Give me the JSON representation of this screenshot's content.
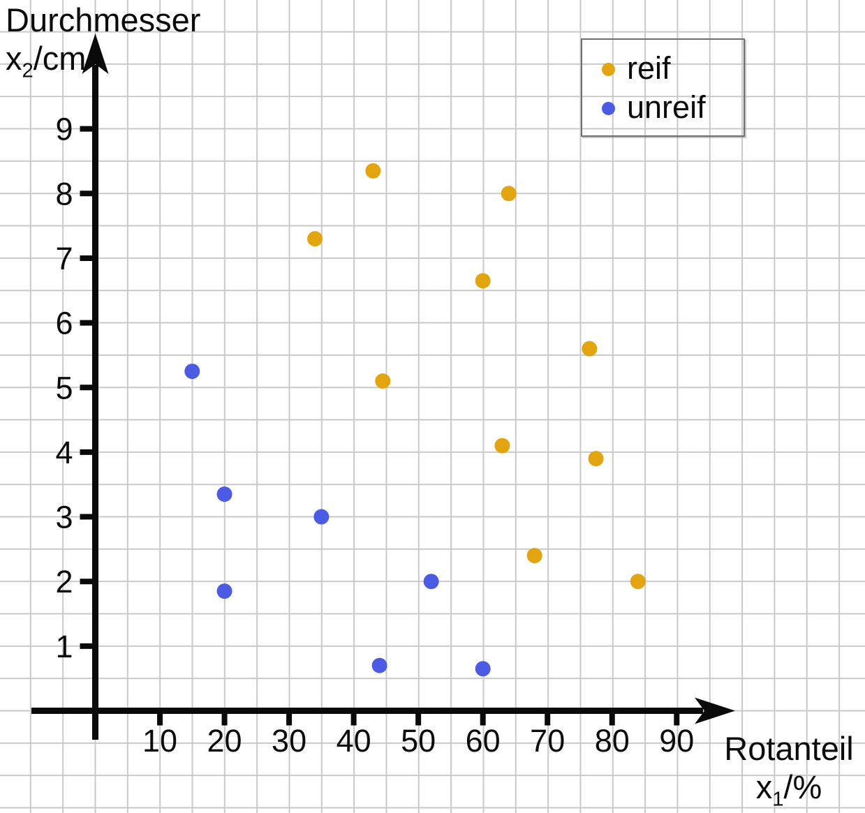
{
  "y_axis_title": {
    "line1": "Durchmesser",
    "var": "x",
    "sub": "2",
    "unit": "/cm"
  },
  "x_axis_title": {
    "line1": "Rotanteil",
    "var": "x",
    "sub": "1",
    "unit": "/%"
  },
  "legend": {
    "items": [
      {
        "label": "reif",
        "color": "#e3a50f"
      },
      {
        "label": "unreif",
        "color": "#4c5be4"
      }
    ]
  },
  "chart_data": {
    "type": "scatter",
    "title": "",
    "xlabel": "Rotanteil x1/%",
    "ylabel": "Durchmesser x2/cm",
    "x_ticks": [
      10,
      20,
      30,
      40,
      50,
      60,
      70,
      80,
      90
    ],
    "y_ticks": [
      1,
      2,
      3,
      4,
      5,
      6,
      7,
      8,
      9
    ],
    "xlim": [
      0,
      97
    ],
    "ylim": [
      0,
      10.4
    ],
    "grid": true,
    "grid_step_x": 5,
    "grid_step_y": 0.5,
    "legend_position": "top-right",
    "series": [
      {
        "name": "reif",
        "color": "#e3a50f",
        "points": [
          [
            43,
            8.35
          ],
          [
            64,
            8.0
          ],
          [
            34,
            7.3
          ],
          [
            60,
            6.65
          ],
          [
            76.5,
            5.6
          ],
          [
            44.5,
            5.1
          ],
          [
            63,
            4.1
          ],
          [
            77.5,
            3.9
          ],
          [
            68,
            2.4
          ],
          [
            84,
            2.0
          ]
        ]
      },
      {
        "name": "unreif",
        "color": "#4c5be4",
        "points": [
          [
            15,
            5.25
          ],
          [
            20,
            3.35
          ],
          [
            35,
            3.0
          ],
          [
            20,
            1.85
          ],
          [
            52,
            2.0
          ],
          [
            44,
            0.7
          ],
          [
            60,
            0.65
          ]
        ]
      }
    ]
  }
}
